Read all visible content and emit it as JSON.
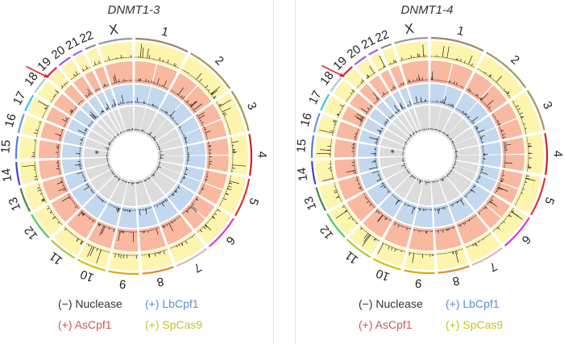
{
  "chart_data": [
    {
      "type": "circos",
      "title": "DNMT1-3",
      "chromosomes": [
        "1",
        "2",
        "3",
        "4",
        "5",
        "6",
        "7",
        "8",
        "9",
        "10",
        "11",
        "12",
        "13",
        "14",
        "15",
        "16",
        "17",
        "18",
        "19",
        "20",
        "21",
        "22",
        "X"
      ],
      "chromosome_lengths_mb": [
        249,
        243,
        198,
        191,
        181,
        171,
        159,
        146,
        141,
        136,
        135,
        134,
        115,
        107,
        103,
        90,
        81,
        78,
        59,
        63,
        48,
        51,
        155
      ],
      "tracks_outer_to_inner": [
        "(+) SpCas9",
        "(+) AsCpf1",
        "(+) LbCpf1",
        "(−) Nuclease"
      ],
      "highlight_arrow_chromosome": "19",
      "annotation": "*",
      "annotation_chromosome": "15"
    },
    {
      "type": "circos",
      "title": "DNMT1-4",
      "chromosomes": [
        "1",
        "2",
        "3",
        "4",
        "5",
        "6",
        "7",
        "8",
        "9",
        "10",
        "11",
        "12",
        "13",
        "14",
        "15",
        "16",
        "17",
        "18",
        "19",
        "20",
        "21",
        "22",
        "X"
      ],
      "chromosome_lengths_mb": [
        249,
        243,
        198,
        191,
        181,
        171,
        159,
        146,
        141,
        136,
        135,
        134,
        115,
        107,
        103,
        90,
        81,
        78,
        59,
        63,
        48,
        51,
        155
      ],
      "tracks_outer_to_inner": [
        "(+) SpCas9",
        "(+) AsCpf1",
        "(+) LbCpf1",
        "(−) Nuclease"
      ],
      "highlight_arrow_chromosome": "19",
      "annotation": "*",
      "annotation_chromosome": "15"
    }
  ],
  "legend": {
    "nuclease": "(−) Nuclease",
    "lbcpf1": "(+) LbCpf1",
    "ascpf1": "(+) AsCpf1",
    "spcas9": "(+) SpCas9"
  },
  "colors": {
    "spcas9_track": "#fdf5ad",
    "ascpf1_track": "#f9b8a0",
    "lbcpf1_track": "#c3d8ee",
    "nuclease_track": "#dcdcdc",
    "arrow": "#e8202a",
    "ideogram": [
      "#a0846a",
      "#9a9a5a",
      "#9a9a5a",
      "#cc2222",
      "#d83333",
      "#dd33dd",
      "#d8b8c0",
      "#e08a2a",
      "#e0a800",
      "#d9c000",
      "#a8c83a",
      "#4ccc4c",
      "#4a8a3a",
      "#4444cc",
      "#5a7adc",
      "#6a9adc",
      "#33c8d8",
      "#a0d0d8",
      "#e8202a",
      "#a05ad8",
      "#9a6ad8",
      "#8a8a8a",
      "#9a9a9a"
    ]
  }
}
